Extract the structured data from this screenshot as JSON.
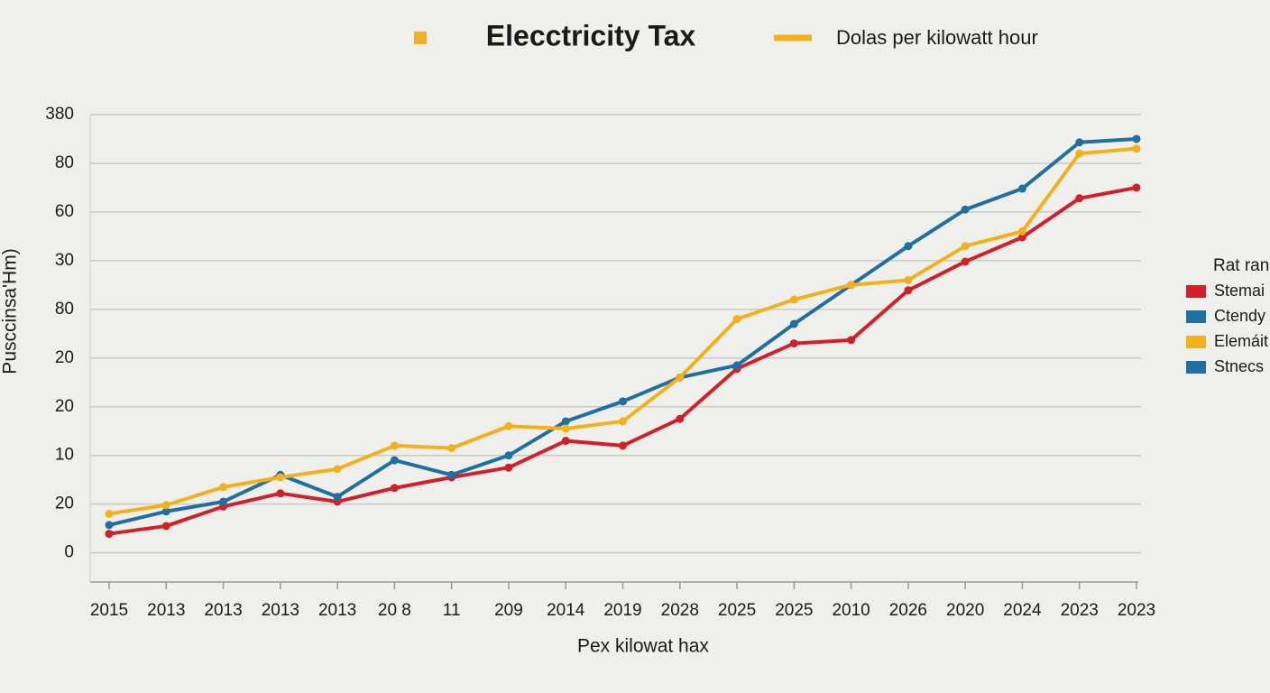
{
  "chart_data": {
    "type": "line",
    "title": "Elecctricity Tax",
    "header_legend": {
      "label": "Dolas per kilowatt hour",
      "color": "#f2b01e"
    },
    "x_label": "Pex kilowat hax",
    "y_label": "Pusccinsa'Hm)",
    "categories": [
      "2015",
      "2013",
      "2013",
      "2013",
      "2013",
      "20 8",
      "11",
      "209",
      "2014",
      "2019",
      "2028",
      "2025",
      "2025",
      "2010",
      "2026",
      "2020",
      "2024",
      "2023",
      "2023"
    ],
    "ylim": [
      -0.6,
      9
    ],
    "yticks": [
      {
        "value": 0,
        "label": "0"
      },
      {
        "value": 1,
        "label": "20"
      },
      {
        "value": 2,
        "label": "10"
      },
      {
        "value": 3,
        "label": "20"
      },
      {
        "value": 4,
        "label": "20"
      },
      {
        "value": 5,
        "label": "80"
      },
      {
        "value": 6,
        "label": "30"
      },
      {
        "value": 7,
        "label": "60"
      },
      {
        "value": 8,
        "label": "80"
      },
      {
        "value": 9,
        "label": "380"
      }
    ],
    "grid": true,
    "series": [
      {
        "name": "Stemai",
        "color": "#d0202a",
        "values": [
          0.39,
          0.55,
          0.95,
          1.22,
          1.05,
          1.33,
          1.55,
          1.75,
          2.3,
          2.2,
          2.75,
          3.78,
          4.3,
          4.37,
          5.39,
          5.98,
          6.48,
          7.28,
          7.5
        ]
      },
      {
        "name": "Ctendy",
        "color": "#1f6fa3",
        "values": [
          0.57,
          0.85,
          1.05,
          1.6,
          1.15,
          1.9,
          1.6,
          2.0,
          2.7,
          3.11,
          3.6,
          3.85,
          4.7,
          5.5,
          6.3,
          7.05,
          7.48,
          8.43,
          8.5
        ]
      },
      {
        "name": "Elemáit",
        "color": "#f2b01e",
        "values": [
          0.8,
          0.98,
          1.35,
          1.55,
          1.72,
          2.2,
          2.15,
          2.6,
          2.55,
          2.7,
          3.6,
          4.8,
          5.2,
          5.5,
          5.6,
          6.3,
          6.6,
          8.2,
          8.3
        ]
      }
    ],
    "legend": {
      "title": "Rat ran",
      "position": "right",
      "extra_entries": [
        {
          "name": "Stnecs",
          "color": "#1f6fa3"
        }
      ]
    }
  }
}
